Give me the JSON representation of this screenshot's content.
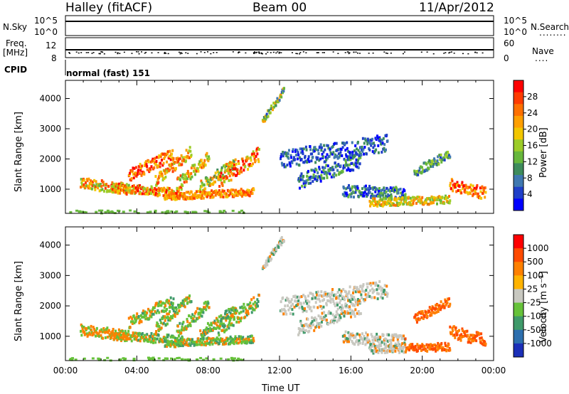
{
  "header": {
    "station": "Halley (fitACF)",
    "beam": "Beam 00",
    "date": "11/Apr/2012"
  },
  "panels": {
    "nsky": {
      "label": "N.Sky",
      "ticks": [
        "10^5",
        "10^0"
      ]
    },
    "nsearch": {
      "label": "N.Search",
      "ticks": [
        "10^5",
        "10^0"
      ],
      "dots": "........"
    },
    "freq": {
      "label_line1": "Freq.",
      "label_line2": "[MHz]",
      "ticks": [
        "12",
        "8"
      ]
    },
    "nave": {
      "label": "Nave",
      "ticks": [
        "60",
        "0"
      ],
      "dots": "...."
    },
    "cpid": {
      "label": "CPID",
      "text": "normal (fast) 151"
    }
  },
  "chart_data": [
    {
      "type": "heatmap",
      "name": "power",
      "ylabel": "Slant Range [km]",
      "yticks": [
        "1000",
        "2000",
        "3000",
        "4000"
      ],
      "ylim": [
        200,
        4600
      ],
      "xlim": [
        0,
        24
      ],
      "colorbar": {
        "label": "Power [dB]",
        "ticks": [
          "4",
          "8",
          "12",
          "16",
          "20",
          "24",
          "28"
        ],
        "colors": [
          "#0000ff",
          "#1f3fc8",
          "#3f78b0",
          "#3e8c5c",
          "#67b73c",
          "#9ccc28",
          "#f2c600",
          "#ff9f00",
          "#ff7000",
          "#ff3b00",
          "#ff0000"
        ]
      }
    },
    {
      "type": "heatmap",
      "name": "velocity",
      "ylabel": "Slant Range [km]",
      "yticks": [
        "1000",
        "2000",
        "3000",
        "4000"
      ],
      "ylim": [
        200,
        4600
      ],
      "xlim": [
        0,
        24
      ],
      "xlabel": "Time UT",
      "xticks": [
        "00:00",
        "04:00",
        "08:00",
        "12:00",
        "16:00",
        "20:00",
        "00:00"
      ],
      "colorbar": {
        "label": "Velocity [m s⁻¹]",
        "ticks": [
          "1000",
          "500",
          "100",
          "25",
          "-25",
          "-100",
          "-500",
          "-1000"
        ],
        "colors": [
          "#1b2fb8",
          "#2d6fae",
          "#3f9a6a",
          "#66c23a",
          "#c8c8c0",
          "#ffb300",
          "#ff8000",
          "#ff4a00",
          "#ff0000"
        ]
      }
    }
  ]
}
